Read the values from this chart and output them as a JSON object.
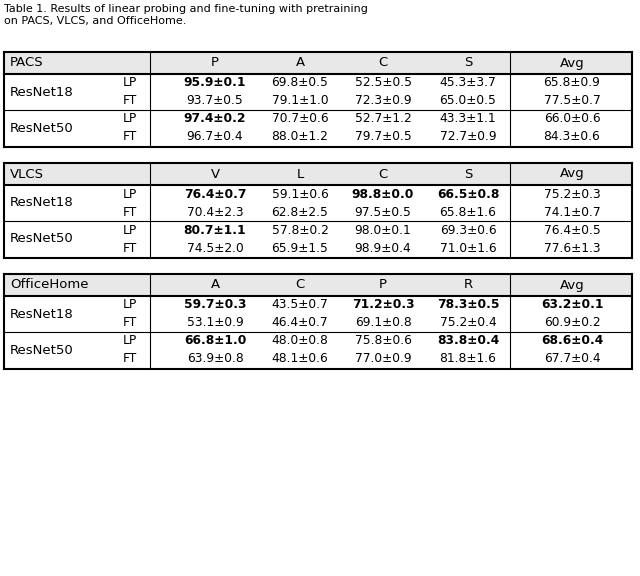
{
  "caption_line1": "Table 1. Results of linear probing and fine-tuning with pretraining",
  "caption_line2": "on PACS, VLCS, and OfficeHome.",
  "tables": [
    {
      "name": "PACS",
      "col_headers": [
        "PACS",
        "P",
        "A",
        "C",
        "S",
        "Avg"
      ],
      "rows": [
        {
          "model": "ResNet18",
          "lp": [
            "95.9±0.1",
            "69.8±0.5",
            "52.5±0.5",
            "45.3±3.7",
            "65.8±0.9"
          ],
          "ft": [
            "93.7±0.5",
            "79.1±1.0",
            "72.3±0.9",
            "65.0±0.5",
            "77.5±0.7"
          ],
          "lp_bold": [
            true,
            false,
            false,
            false,
            false
          ],
          "ft_bold": [
            false,
            false,
            false,
            false,
            false
          ]
        },
        {
          "model": "ResNet50",
          "lp": [
            "97.4±0.2",
            "70.7±0.6",
            "52.7±1.2",
            "43.3±1.1",
            "66.0±0.6"
          ],
          "ft": [
            "96.7±0.4",
            "88.0±1.2",
            "79.7±0.5",
            "72.7±0.9",
            "84.3±0.6"
          ],
          "lp_bold": [
            true,
            false,
            false,
            false,
            false
          ],
          "ft_bold": [
            false,
            false,
            false,
            false,
            false
          ]
        }
      ]
    },
    {
      "name": "VLCS",
      "col_headers": [
        "VLCS",
        "V",
        "L",
        "C",
        "S",
        "Avg"
      ],
      "rows": [
        {
          "model": "ResNet18",
          "lp": [
            "76.4±0.7",
            "59.1±0.6",
            "98.8±0.0",
            "66.5±0.8",
            "75.2±0.3"
          ],
          "ft": [
            "70.4±2.3",
            "62.8±2.5",
            "97.5±0.5",
            "65.8±1.6",
            "74.1±0.7"
          ],
          "lp_bold": [
            true,
            false,
            true,
            true,
            false
          ],
          "ft_bold": [
            false,
            false,
            false,
            false,
            false
          ]
        },
        {
          "model": "ResNet50",
          "lp": [
            "80.7±1.1",
            "57.8±0.2",
            "98.0±0.1",
            "69.3±0.6",
            "76.4±0.5"
          ],
          "ft": [
            "74.5±2.0",
            "65.9±1.5",
            "98.9±0.4",
            "71.0±1.6",
            "77.6±1.3"
          ],
          "lp_bold": [
            true,
            false,
            false,
            false,
            false
          ],
          "ft_bold": [
            false,
            false,
            false,
            false,
            false
          ]
        }
      ]
    },
    {
      "name": "OfficeHome",
      "col_headers": [
        "OfficeHome",
        "A",
        "C",
        "P",
        "R",
        "Avg"
      ],
      "rows": [
        {
          "model": "ResNet18",
          "lp": [
            "59.7±0.3",
            "43.5±0.7",
            "71.2±0.3",
            "78.3±0.5",
            "63.2±0.1"
          ],
          "ft": [
            "53.1±0.9",
            "46.4±0.7",
            "69.1±0.8",
            "75.2±0.4",
            "60.9±0.2"
          ],
          "lp_bold": [
            true,
            false,
            true,
            true,
            true
          ],
          "ft_bold": [
            false,
            false,
            false,
            false,
            false
          ]
        },
        {
          "model": "ResNet50",
          "lp": [
            "66.8±1.0",
            "48.0±0.8",
            "75.8±0.6",
            "83.8±0.4",
            "68.6±0.4"
          ],
          "ft": [
            "63.9±0.8",
            "48.1±0.6",
            "77.0±0.9",
            "81.8±1.6",
            "67.7±0.4"
          ],
          "lp_bold": [
            true,
            false,
            false,
            true,
            true
          ],
          "ft_bold": [
            false,
            false,
            false,
            false,
            false
          ]
        }
      ]
    }
  ],
  "background_color": "#ffffff",
  "text_color": "#000000",
  "header_bg": "#e8e8e8"
}
